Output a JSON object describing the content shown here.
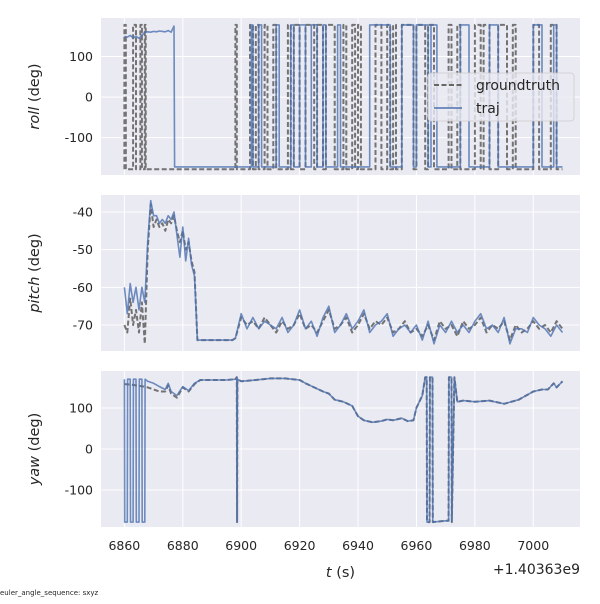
{
  "chart_data": [
    {
      "type": "line",
      "ylabel_var": "roll",
      "ylabel_unit": " (deg)",
      "ylim": [
        -192,
        195
      ],
      "yticks": [
        100,
        0,
        -100
      ],
      "series": [
        {
          "name": "groundtruth",
          "low": -178,
          "high": 178,
          "t_start": 6860,
          "t_end": 7010,
          "high_intervals": [
            [
              6860,
              6860.5
            ],
            [
              6863,
              6864
            ],
            [
              6865.5,
              6866
            ],
            [
              6867,
              6867.3
            ],
            [
              6898,
              6898.5
            ],
            [
              6903,
              6904
            ],
            [
              6905,
              6906
            ],
            [
              6908,
              6909
            ],
            [
              6911,
              6912
            ],
            [
              6916,
              6917
            ],
            [
              6918,
              6920
            ],
            [
              6922,
              6925
            ],
            [
              6926,
              6928
            ],
            [
              6929,
              6932
            ],
            [
              6935,
              6936
            ],
            [
              6938,
              6939
            ],
            [
              6940,
              6941
            ],
            [
              6946,
              6948
            ],
            [
              6950,
              6951
            ],
            [
              6952,
              6953
            ],
            [
              6955,
              6959
            ],
            [
              6960,
              6963
            ],
            [
              6964,
              6966
            ],
            [
              6971,
              6972
            ],
            [
              6974,
              6975
            ],
            [
              6980,
              6982
            ],
            [
              6983,
              6985
            ],
            [
              6988,
              6991
            ],
            [
              6993,
              6994
            ],
            [
              7000,
              7002
            ],
            [
              7006,
              7008
            ]
          ]
        },
        {
          "name": "traj",
          "low": -172,
          "high": 178,
          "prefix_t": [
            6860,
            6861,
            6862,
            6863,
            6864,
            6865,
            6866,
            6867,
            6868,
            6869,
            6870,
            6871,
            6872,
            6873,
            6874,
            6875,
            6876,
            6877
          ],
          "prefix_v": [
            150,
            148,
            152,
            146,
            150,
            145,
            152,
            160,
            161,
            160,
            162,
            161,
            163,
            162,
            161,
            164,
            160,
            175
          ],
          "t_start": 6877.2,
          "t_end": 7010,
          "high_intervals": [
            [
              6903.5,
              6904
            ],
            [
              6906,
              6907
            ],
            [
              6912,
              6913
            ],
            [
              6917,
              6918
            ],
            [
              6920,
              6922
            ],
            [
              6924,
              6926
            ],
            [
              6928,
              6929
            ],
            [
              6933,
              6934
            ],
            [
              6944,
              6951
            ],
            [
              6955,
              6959
            ],
            [
              6960,
              6964
            ],
            [
              6965,
              6967
            ],
            [
              6975,
              6978
            ],
            [
              6985,
              6988
            ],
            [
              7000,
              7003
            ],
            [
              7007,
              7008
            ]
          ]
        }
      ]
    },
    {
      "type": "line",
      "ylabel_var": "pitch",
      "ylabel_unit": " (deg)",
      "ylim": [
        -76.9,
        -35.5
      ],
      "yticks": [
        -40,
        -50,
        -60,
        -70
      ],
      "t": [
        6860,
        6861,
        6862,
        6863,
        6864,
        6865,
        6866,
        6867,
        6868,
        6869,
        6870,
        6871,
        6872,
        6873,
        6874,
        6875,
        6876,
        6877,
        6878,
        6879,
        6880,
        6881,
        6882,
        6883,
        6884,
        6885,
        6886,
        6887,
        6888,
        6889,
        6890,
        6891,
        6892,
        6893,
        6894,
        6895,
        6896,
        6897,
        6898,
        6900,
        6902,
        6904,
        6906,
        6908,
        6910,
        6912,
        6914,
        6916,
        6918,
        6920,
        6922,
        6924,
        6926,
        6928,
        6930,
        6932,
        6934,
        6936,
        6938,
        6940,
        6942,
        6944,
        6946,
        6948,
        6950,
        6952,
        6954,
        6956,
        6958,
        6960,
        6962,
        6964,
        6966,
        6968,
        6970,
        6972,
        6974,
        6976,
        6978,
        6980,
        6982,
        6984,
        6986,
        6988,
        6990,
        6992,
        6994,
        6996,
        6998,
        7000,
        7002,
        7004,
        7006,
        7008,
        7010
      ],
      "series": [
        {
          "name": "groundtruth",
          "values": [
            -70,
            -72,
            -63,
            -70,
            -66,
            -72,
            -64,
            -75,
            -50,
            -38,
            -44,
            -42,
            -44,
            -43,
            -45,
            -42,
            -43,
            -41,
            -45,
            -48,
            -45,
            -50,
            -48,
            -53,
            -56,
            -74,
            -74,
            -74,
            -74,
            -74,
            -74,
            -74,
            -74,
            -74,
            -74,
            -74,
            -74,
            -74,
            -73.5,
            -68,
            -70,
            -69,
            -71,
            -68,
            -70,
            -72,
            -69,
            -71,
            -70,
            -67,
            -71,
            -70,
            -72,
            -69,
            -66,
            -71,
            -70,
            -68,
            -72,
            -70,
            -67,
            -71,
            -69,
            -70,
            -68,
            -72,
            -71,
            -69,
            -72,
            -71,
            -73,
            -70,
            -74,
            -69,
            -71,
            -70,
            -73,
            -69,
            -71,
            -70,
            -68,
            -72,
            -70,
            -71,
            -69,
            -74,
            -70,
            -72,
            -71,
            -69,
            -71,
            -70,
            -72,
            -69,
            -71
          ]
        },
        {
          "name": "traj",
          "values": [
            -60,
            -67,
            -59,
            -64,
            -60,
            -66,
            -60,
            -64,
            -48,
            -37,
            -41,
            -41,
            -43,
            -42,
            -43,
            -41,
            -42,
            -40,
            -46,
            -52,
            -44,
            -53,
            -47,
            -54,
            -57,
            -74,
            -74,
            -74,
            -74,
            -74,
            -74,
            -74,
            -74,
            -74,
            -74,
            -74,
            -74,
            -74,
            -73.5,
            -67,
            -71,
            -68,
            -71,
            -69,
            -70,
            -71,
            -68,
            -72,
            -70,
            -66,
            -71,
            -69,
            -73,
            -68,
            -65,
            -72,
            -70,
            -67,
            -71,
            -69,
            -66,
            -72,
            -70,
            -69,
            -67,
            -73,
            -71,
            -70,
            -72,
            -70,
            -74,
            -69,
            -75,
            -70,
            -72,
            -69,
            -72,
            -70,
            -72,
            -69,
            -67,
            -71,
            -70,
            -72,
            -68,
            -75,
            -71,
            -71,
            -72,
            -68,
            -70,
            -71,
            -73,
            -70,
            -72
          ]
        }
      ]
    },
    {
      "type": "line",
      "ylabel_var": "yaw",
      "ylabel_unit": " (deg)",
      "ylim": [
        -190,
        190
      ],
      "yticks": [
        100,
        0,
        -100
      ],
      "series": [
        {
          "name": "groundtruth",
          "t": [
            6860,
            6862,
            6864,
            6866,
            6868,
            6870,
            6872,
            6874,
            6875,
            6876,
            6878,
            6880,
            6882,
            6884,
            6886,
            6890,
            6895,
            6898,
            6898.5,
            6898.6,
            6898.7,
            6900,
            6905,
            6910,
            6915,
            6920,
            6922,
            6925,
            6928,
            6930,
            6932,
            6935,
            6938,
            6940,
            6942,
            6945,
            6948,
            6950,
            6952,
            6955,
            6957,
            6959,
            6960,
            6962,
            6963,
            6963.5,
            6963.6,
            6964.5,
            6964.6,
            6965.5,
            6965.6,
            6970,
            6971,
            6971.1,
            6972,
            6972.1,
            6973,
            6974,
            6976,
            6980,
            6985,
            6990,
            6995,
            7000,
            7003,
            7005,
            7007,
            7008,
            7010
          ],
          "values": [
            158,
            157,
            155,
            153,
            150,
            145,
            140,
            140,
            155,
            135,
            125,
            150,
            140,
            158,
            168,
            168,
            168,
            170,
            175,
            -178,
            170,
            165,
            168,
            172,
            172,
            168,
            160,
            150,
            140,
            135,
            120,
            115,
            105,
            80,
            70,
            65,
            68,
            72,
            70,
            75,
            68,
            70,
            100,
            130,
            175,
            175,
            -178,
            -178,
            175,
            175,
            -178,
            -175,
            -175,
            175,
            175,
            -178,
            175,
            115,
            118,
            115,
            118,
            110,
            120,
            140,
            145,
            145,
            160,
            150,
            165
          ]
        },
        {
          "name": "traj",
          "t": [
            6860,
            6860.1,
            6861,
            6861.1,
            6862,
            6862.1,
            6863,
            6863.1,
            6864,
            6864.1,
            6865,
            6865.1,
            6866,
            6866.1,
            6867,
            6867.1,
            6868,
            6870,
            6872,
            6874,
            6875,
            6876,
            6878,
            6880,
            6882,
            6884,
            6886,
            6890,
            6895,
            6898,
            6898.5,
            6898.6,
            6898.7,
            6900,
            6905,
            6910,
            6915,
            6920,
            6922,
            6925,
            6928,
            6930,
            6932,
            6935,
            6938,
            6940,
            6942,
            6945,
            6948,
            6950,
            6952,
            6955,
            6957,
            6959,
            6960,
            6962,
            6963,
            6963.5,
            6963.6,
            6964.5,
            6964.6,
            6965.5,
            6965.6,
            6970,
            6971,
            6971.1,
            6972,
            6972.1,
            6973,
            6974,
            6976,
            6980,
            6985,
            6990,
            6995,
            7000,
            7003,
            7005,
            7007,
            7008,
            7010
          ],
          "values": [
            170,
            -178,
            -178,
            170,
            170,
            -178,
            -178,
            170,
            170,
            -178,
            -178,
            170,
            170,
            -178,
            -178,
            170,
            165,
            160,
            152,
            145,
            160,
            140,
            130,
            152,
            142,
            160,
            168,
            168,
            168,
            170,
            175,
            -178,
            170,
            165,
            168,
            172,
            172,
            168,
            160,
            150,
            140,
            135,
            120,
            115,
            105,
            80,
            70,
            65,
            68,
            72,
            70,
            75,
            68,
            70,
            100,
            130,
            175,
            175,
            -178,
            -178,
            175,
            175,
            -178,
            -175,
            -175,
            175,
            175,
            -178,
            175,
            115,
            118,
            115,
            118,
            110,
            120,
            140,
            145,
            145,
            160,
            150,
            165
          ]
        }
      ]
    }
  ],
  "x_axis": {
    "xlim": [
      6852,
      7016
    ],
    "ticks": [
      6860,
      6880,
      6900,
      6920,
      6940,
      6960,
      6980,
      7000
    ],
    "label_var": "t",
    "label_unit": " (s)",
    "offset": "+1.40363e9"
  },
  "legend": {
    "placement": "right (top panel)",
    "entries": [
      {
        "label": "groundtruth",
        "style": "dashed"
      },
      {
        "label": "traj",
        "style": "solid"
      }
    ]
  },
  "colors": {
    "groundtruth": "#666666",
    "traj": "#4c72b0",
    "axes_bg": "#eaeaf2",
    "grid": "#ffffff"
  },
  "footer": "euler_angle_sequence: sxyz"
}
